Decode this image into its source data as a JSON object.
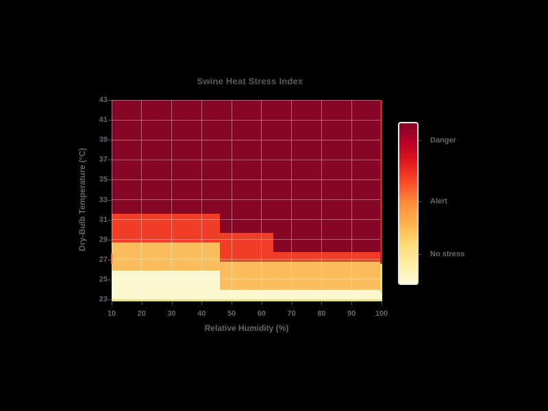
{
  "chart_data": {
    "type": "heatmap",
    "title": "Swine Heat Stress Index",
    "xlabel": "Relative Humidity (%)",
    "ylabel": "Dry-Bulb Temperature (°C)",
    "x_range": [
      10,
      100
    ],
    "y_range": [
      23,
      43
    ],
    "x_ticks": [
      10,
      20,
      30,
      40,
      50,
      60,
      70,
      80,
      90,
      100
    ],
    "y_ticks": [
      43,
      41,
      39,
      37,
      35,
      33,
      31,
      29,
      27,
      25,
      23
    ],
    "humidity_columns": [
      10,
      20,
      30,
      40,
      50,
      60,
      70,
      80,
      90,
      100
    ],
    "temperature_rows_top_to_bottom": [
      43,
      42,
      41,
      40,
      39,
      38,
      37,
      36,
      35,
      34,
      33,
      32,
      31,
      30,
      29,
      28,
      27,
      26,
      25,
      24,
      23
    ],
    "z_top_to_bottom": [
      [
        3,
        3,
        3,
        3,
        3,
        3,
        3,
        3,
        3,
        3
      ],
      [
        3,
        3,
        3,
        3,
        3,
        3,
        3,
        3,
        3,
        3
      ],
      [
        3,
        3,
        3,
        3,
        3,
        3,
        3,
        3,
        3,
        3
      ],
      [
        3,
        3,
        3,
        3,
        3,
        3,
        3,
        3,
        3,
        3
      ],
      [
        3,
        3,
        3,
        3,
        3,
        3,
        3,
        3,
        3,
        3
      ],
      [
        3,
        3,
        3,
        3,
        3,
        3,
        3,
        3,
        3,
        3
      ],
      [
        3,
        3,
        3,
        3,
        3,
        3,
        3,
        3,
        3,
        3
      ],
      [
        3,
        3,
        3,
        3,
        3,
        3,
        3,
        3,
        3,
        3
      ],
      [
        3,
        3,
        3,
        3,
        3,
        3,
        3,
        3,
        3,
        3
      ],
      [
        3,
        3,
        3,
        3,
        3,
        3,
        3,
        3,
        3,
        3
      ],
      [
        3,
        3,
        3,
        3,
        3,
        3,
        3,
        3,
        3,
        3
      ],
      [
        3,
        3,
        3,
        3,
        3,
        3,
        3,
        3,
        3,
        3
      ],
      [
        2,
        2,
        2,
        2,
        3,
        3,
        3,
        3,
        3,
        3
      ],
      [
        2,
        2,
        2,
        2,
        3,
        3,
        3,
        3,
        3,
        3
      ],
      [
        2,
        2,
        2,
        2,
        2,
        2,
        3,
        3,
        3,
        3
      ],
      [
        1,
        1,
        1,
        1,
        2,
        2,
        3,
        3,
        3,
        3
      ],
      [
        1,
        1,
        1,
        1,
        2,
        2,
        2,
        2,
        2,
        2
      ],
      [
        1,
        1,
        1,
        1,
        1,
        1,
        1,
        1,
        1,
        1
      ],
      [
        0,
        0,
        0,
        0,
        1,
        1,
        1,
        1,
        1,
        1
      ],
      [
        0,
        0,
        0,
        0,
        1,
        1,
        1,
        1,
        1,
        1
      ],
      [
        0,
        0,
        0,
        0,
        0,
        0,
        0,
        0,
        0,
        0
      ]
    ],
    "level_colors": [
      "#fbf8d0",
      "#fdbd5c",
      "#f23e26",
      "#860628"
    ],
    "grid": true,
    "legend_position": "right",
    "colorbar": {
      "tick_labels": [
        "Danger",
        "Alert",
        "No stress"
      ],
      "tick_positions_pct": [
        11.5,
        49.6,
        82.5
      ],
      "gradient_stops_top_to_bottom": [
        "#860628",
        "#bd0026",
        "#e31a1c",
        "#fc4e2a",
        "#fd8d3c",
        "#feb24c",
        "#fed976",
        "#ffeda0",
        "#fffbd9"
      ]
    }
  },
  "style": {
    "background": "#000000",
    "title_color": "#56595e",
    "label_color": "#64676c",
    "tick_color": "#5a5d61",
    "gridline_color": "rgba(255,255,255,0.38)",
    "colorbar_border": "#e8e8e8"
  }
}
